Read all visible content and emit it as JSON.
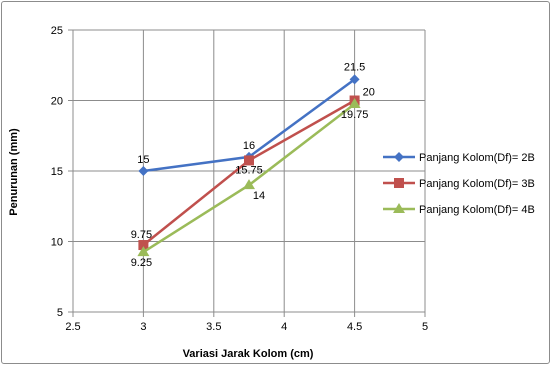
{
  "chart_data": {
    "type": "line",
    "title": "",
    "xlabel": "Variasi Jarak Kolom (cm)",
    "ylabel": "Penurunan (mm)",
    "xlim": [
      2.5,
      5
    ],
    "ylim": [
      5,
      25
    ],
    "xticks": [
      "2.5",
      "3",
      "3.5",
      "4",
      "4.5",
      "5"
    ],
    "yticks": [
      "5",
      "10",
      "15",
      "20",
      "25"
    ],
    "grid": true,
    "legend_position": "right",
    "series": [
      {
        "name": "Panjang Kolom(Df)= 2B",
        "color": "#4472C4",
        "marker": "diamond",
        "x": [
          3,
          3.75,
          4.5
        ],
        "values": [
          15,
          16,
          21.5
        ],
        "labels": [
          "15",
          "16",
          "21.5"
        ]
      },
      {
        "name": "Panjang Kolom(Df)= 3B",
        "color": "#C0504D",
        "marker": "square",
        "x": [
          3,
          3.75,
          4.5
        ],
        "values": [
          9.75,
          15.75,
          20
        ],
        "labels": [
          "9.75",
          "15.75",
          "20"
        ]
      },
      {
        "name": "Panjang Kolom(Df)= 4B",
        "color": "#9BBB59",
        "marker": "triangle",
        "x": [
          3,
          3.75,
          4.5
        ],
        "values": [
          9.25,
          14,
          19.75
        ],
        "labels": [
          "9.25",
          "14",
          "19.75"
        ]
      }
    ]
  }
}
